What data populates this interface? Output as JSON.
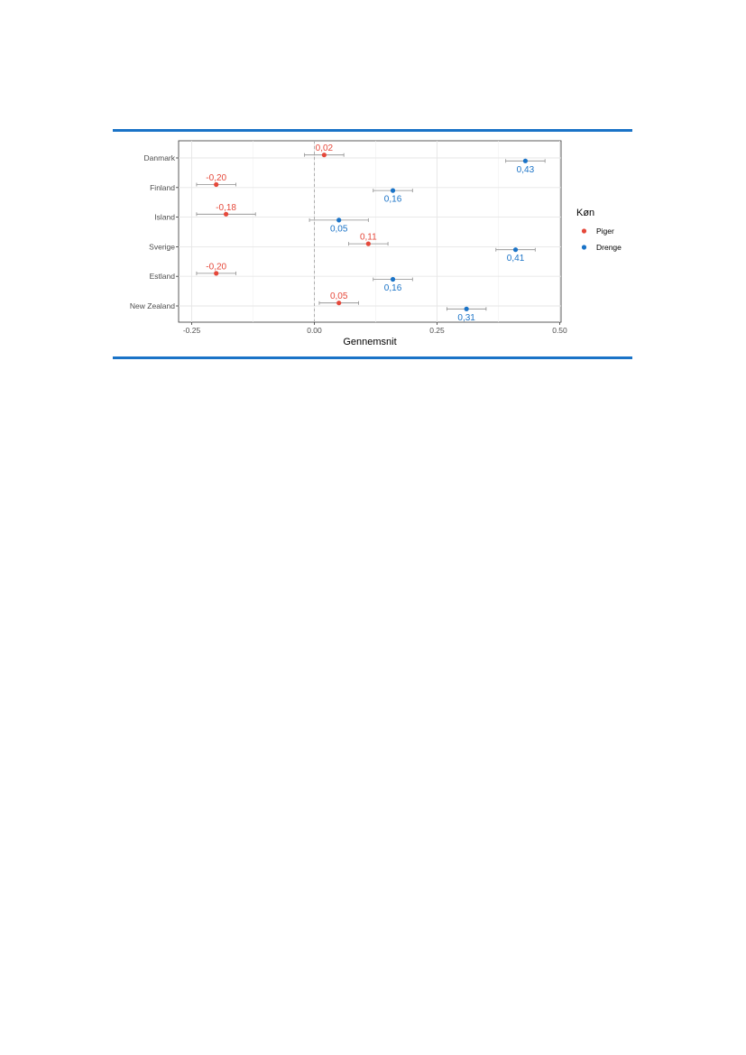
{
  "chart_data": {
    "type": "scatter",
    "xlabel": "Gennemsnit",
    "xlim": [
      -0.27,
      0.5
    ],
    "xticks": [
      -0.25,
      0.0,
      0.25,
      0.5
    ],
    "xtick_labels": [
      "-0.25",
      "0.00",
      "0.25",
      "0.50"
    ],
    "reference_line_x": 0.0,
    "grid": true,
    "categories": [
      "Danmark",
      "Finland",
      "Island",
      "Sverige",
      "Estland",
      "New Zealand"
    ],
    "legend": {
      "title": "Køn",
      "placement": "right",
      "entries": [
        "Piger",
        "Drenge"
      ]
    },
    "series": [
      {
        "name": "Piger",
        "color": "#e5483a",
        "values": [
          0.02,
          -0.2,
          -0.18,
          0.11,
          -0.2,
          0.05
        ],
        "err_low": [
          -0.02,
          -0.24,
          -0.24,
          0.07,
          -0.24,
          0.01
        ],
        "err_high": [
          0.06,
          -0.16,
          -0.12,
          0.15,
          -0.16,
          0.09
        ],
        "labels": [
          "0,02",
          "-0,20",
          "-0,18",
          "0,11",
          "-0,20",
          "0,05"
        ]
      },
      {
        "name": "Drenge",
        "color": "#1a73c7",
        "values": [
          0.43,
          0.16,
          0.05,
          0.41,
          0.16,
          0.31
        ],
        "err_low": [
          0.39,
          0.12,
          -0.01,
          0.37,
          0.12,
          0.27
        ],
        "err_high": [
          0.47,
          0.2,
          0.11,
          0.45,
          0.2,
          0.35
        ],
        "labels": [
          "0,43",
          "0,16",
          "0,05",
          "0,41",
          "0,16",
          "0,31"
        ]
      }
    ]
  }
}
